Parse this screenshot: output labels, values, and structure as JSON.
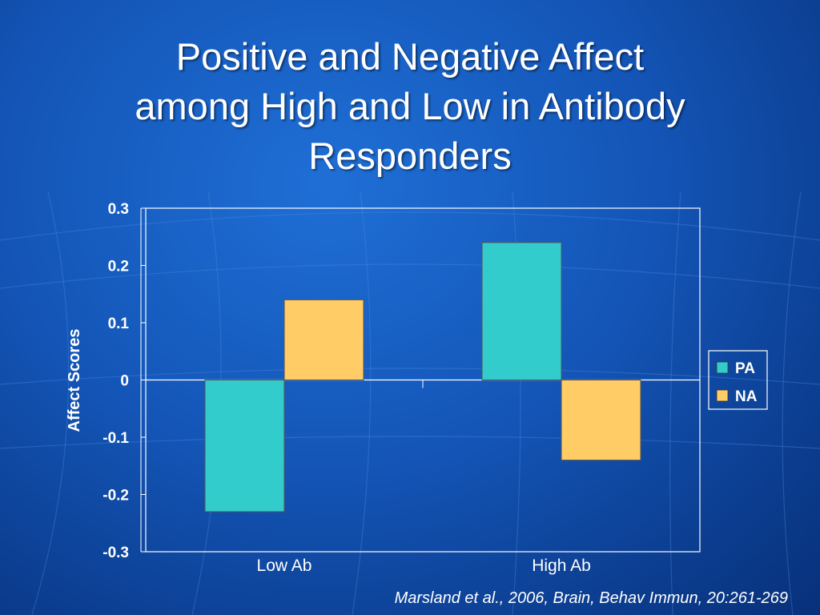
{
  "slide": {
    "title_lines": [
      "Positive and Negative Affect",
      "among High and Low in Antibody",
      "Responders"
    ],
    "citation": "Marsland et al., 2006, Brain, Behav Immun, 20:261-269"
  },
  "chart_data": {
    "type": "bar",
    "categories": [
      "Low Ab",
      "High Ab"
    ],
    "series": [
      {
        "name": "PA",
        "values": [
          -0.23,
          0.24
        ],
        "color": "#33CCCC"
      },
      {
        "name": "NA",
        "values": [
          0.14,
          -0.14
        ],
        "color": "#FFCC66"
      }
    ],
    "ylabel": "Affect Scores",
    "ylim": [
      -0.3,
      0.3
    ],
    "yticks": [
      "0.3",
      "0.2",
      "0.1",
      "0",
      "-0.1",
      "-0.2",
      "-0.3"
    ],
    "grid": false,
    "legend": "right"
  }
}
